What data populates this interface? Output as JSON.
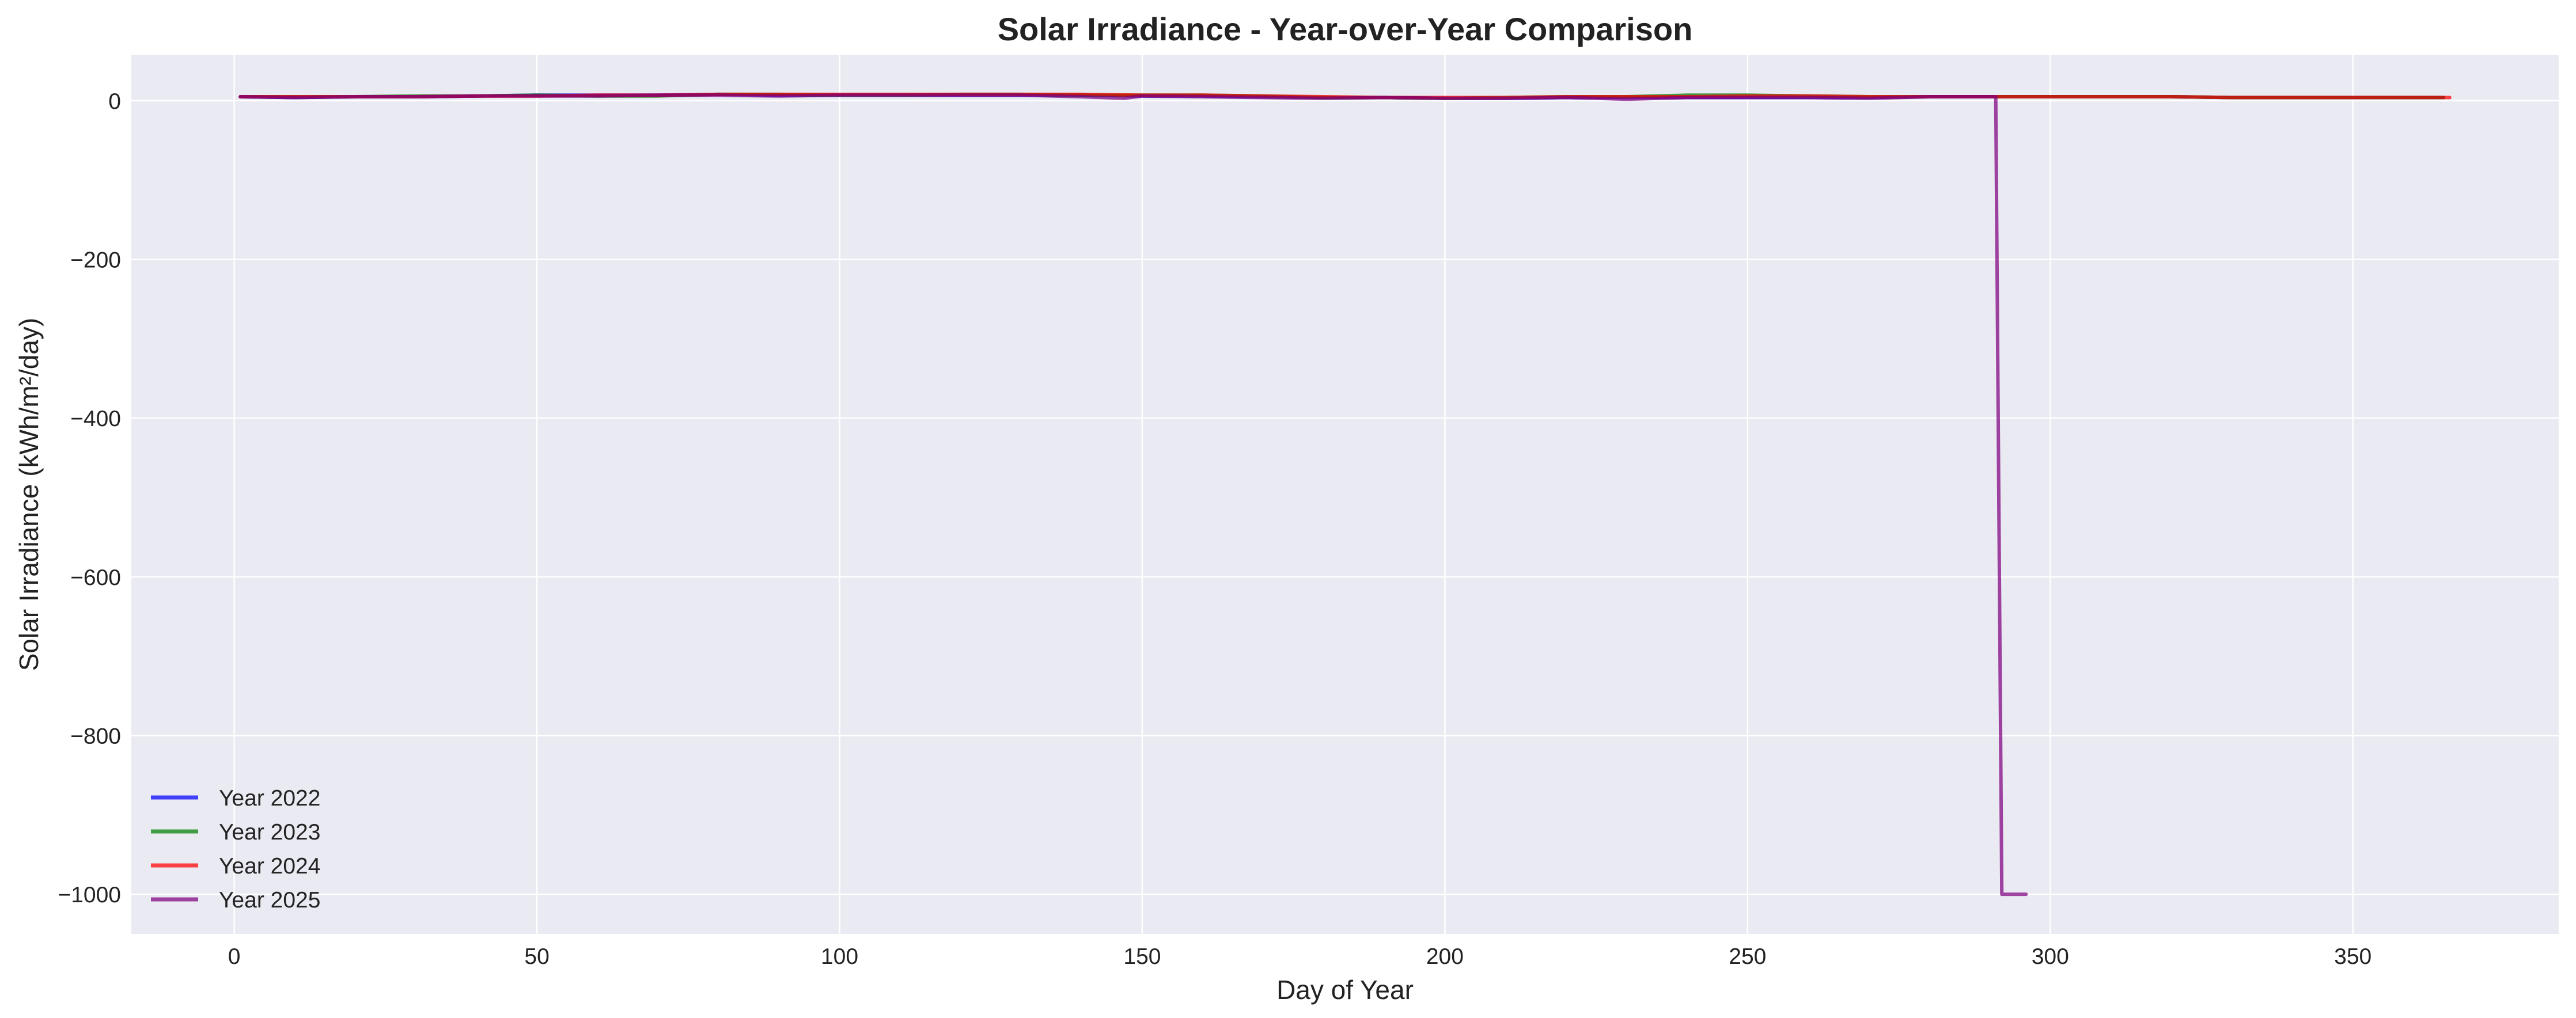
{
  "chart_data": {
    "type": "line",
    "title": "Solar Irradiance - Year-over-Year Comparison",
    "xlabel": "Day of Year",
    "ylabel": "Solar Irradiance (kWh/m²/day)",
    "xlim": [
      -17,
      384
    ],
    "ylim": [
      -1050,
      58
    ],
    "x_ticks": [
      0,
      50,
      100,
      150,
      200,
      250,
      300,
      350
    ],
    "x_tick_labels": [
      "0",
      "50",
      "100",
      "150",
      "200",
      "250",
      "300",
      "350"
    ],
    "y_ticks": [
      0,
      -200,
      -400,
      -600,
      -800,
      -1000
    ],
    "y_tick_labels": [
      "0",
      "−200",
      "−400",
      "−600",
      "−800",
      "−1000"
    ],
    "grid": true,
    "legend_position": "lower-left",
    "background_color": "#eaeaf2",
    "grid_color": "#ffffff",
    "series": [
      {
        "name": "Year 2022",
        "color": "#0000ff",
        "x": [
          1,
          10,
          20,
          30,
          40,
          50,
          60,
          70,
          80,
          90,
          100,
          110,
          120,
          130,
          140,
          150,
          160,
          170,
          180,
          190,
          200,
          210,
          220,
          230,
          240,
          250,
          260,
          270,
          280,
          290,
          300,
          310,
          320,
          330,
          340,
          350,
          360,
          365
        ],
        "y": [
          5,
          4,
          5,
          5,
          6,
          7,
          7,
          7,
          8,
          7,
          7,
          7,
          7,
          7,
          7,
          6,
          6,
          5,
          4,
          4,
          3,
          3,
          4,
          4,
          4,
          4,
          4,
          4,
          5,
          5,
          5,
          5,
          5,
          4,
          4,
          4,
          4,
          4
        ]
      },
      {
        "name": "Year 2023",
        "color": "#008000",
        "x": [
          1,
          10,
          20,
          30,
          40,
          50,
          60,
          70,
          80,
          90,
          100,
          110,
          120,
          130,
          140,
          150,
          160,
          170,
          180,
          190,
          200,
          210,
          220,
          230,
          240,
          250,
          260,
          270,
          280,
          290,
          300,
          310,
          320,
          330,
          340,
          350,
          360,
          365
        ],
        "y": [
          5,
          5,
          5,
          6,
          6,
          7,
          6,
          6,
          8,
          8,
          7,
          7,
          8,
          8,
          7,
          7,
          7,
          6,
          4,
          4,
          3,
          4,
          5,
          5,
          7,
          7,
          6,
          5,
          5,
          5,
          5,
          5,
          5,
          4,
          4,
          4,
          4,
          4
        ]
      },
      {
        "name": "Year 2024",
        "color": "#ff0000",
        "x": [
          1,
          10,
          20,
          30,
          40,
          50,
          60,
          70,
          80,
          90,
          100,
          110,
          120,
          130,
          140,
          150,
          160,
          170,
          180,
          190,
          200,
          210,
          220,
          230,
          240,
          250,
          260,
          270,
          280,
          290,
          300,
          310,
          320,
          330,
          340,
          350,
          360,
          366
        ],
        "y": [
          5,
          5,
          5,
          5,
          6,
          6,
          7,
          7,
          8,
          8,
          8,
          8,
          8,
          8,
          8,
          7,
          7,
          6,
          5,
          4,
          4,
          4,
          5,
          5,
          5,
          6,
          6,
          5,
          5,
          5,
          5,
          5,
          5,
          4,
          4,
          4,
          4,
          4
        ]
      },
      {
        "name": "Year 2025",
        "color": "#800080",
        "x": [
          1,
          10,
          20,
          30,
          40,
          50,
          60,
          70,
          80,
          90,
          100,
          110,
          120,
          130,
          140,
          147,
          150,
          160,
          170,
          180,
          190,
          200,
          210,
          220,
          230,
          240,
          250,
          260,
          270,
          280,
          291,
          292,
          296
        ],
        "y": [
          5,
          4,
          5,
          5,
          6,
          6,
          6,
          7,
          7,
          6,
          7,
          7,
          7,
          7,
          5,
          3,
          6,
          5,
          4,
          3,
          4,
          3,
          3,
          4,
          2,
          4,
          4,
          4,
          3,
          5,
          5,
          -1000,
          -1000
        ]
      }
    ]
  }
}
